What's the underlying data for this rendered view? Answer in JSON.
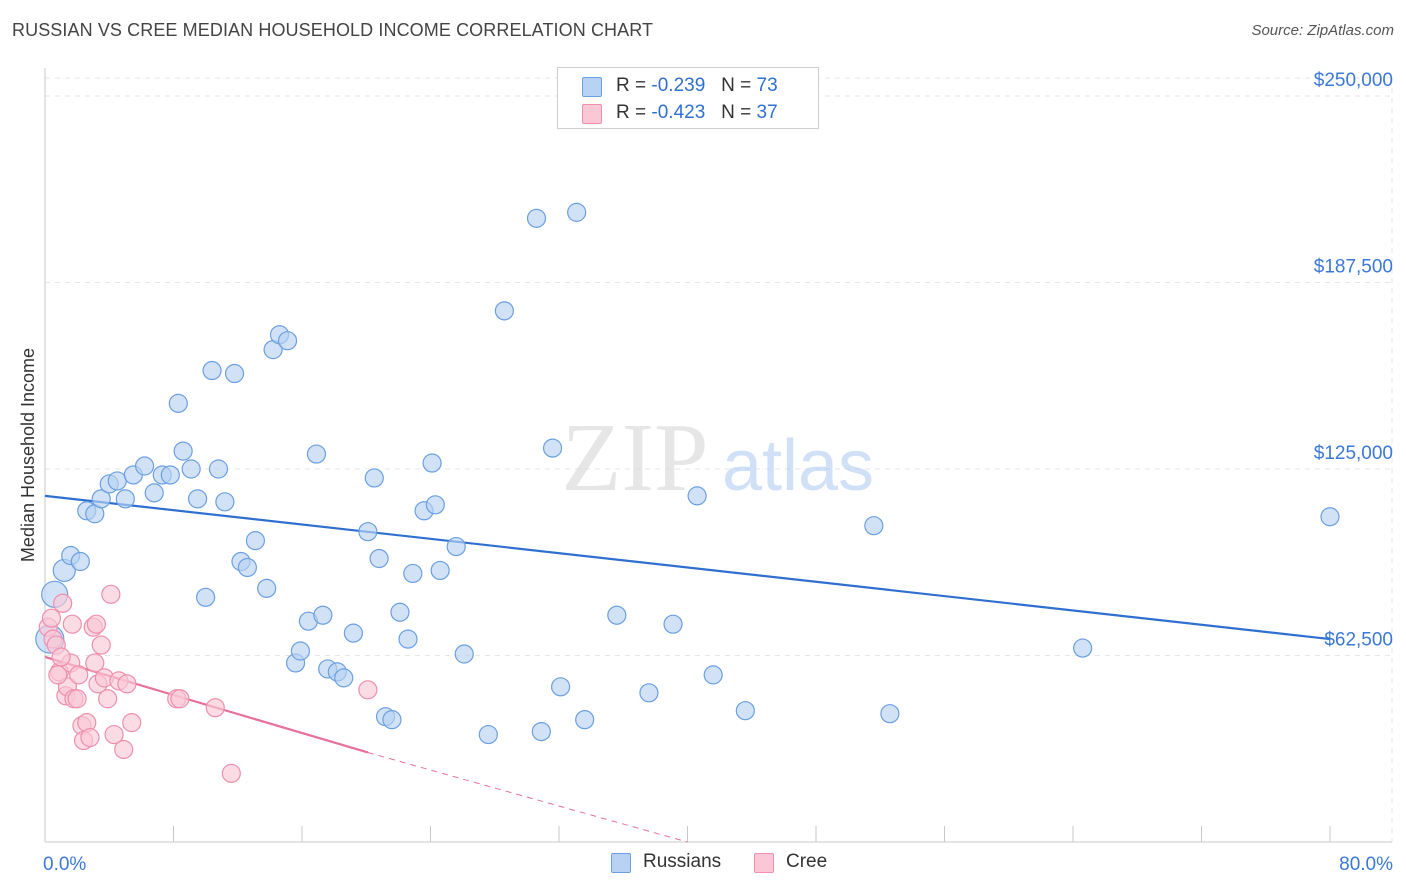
{
  "title": "RUSSIAN VS CREE MEDIAN HOUSEHOLD INCOME CORRELATION CHART",
  "source": "Source: ZipAtlas.com",
  "watermark": {
    "zip": "ZIP",
    "atlas": "atlas"
  },
  "legend": {
    "r_label": "R =",
    "n_label": "N =",
    "entries": [
      {
        "name": "Russians",
        "r": "-0.239",
        "n": "73",
        "fill": "#b8d2f3",
        "stroke": "#6b9fe0"
      },
      {
        "name": "Cree",
        "r": "-0.423",
        "n": "37",
        "fill": "#f9c7d6",
        "stroke": "#ee8fae"
      }
    ]
  },
  "chart_data": {
    "type": "scatter",
    "title": "RUSSIAN VS CREE MEDIAN HOUSEHOLD INCOME CORRELATION CHART",
    "xlabel": "",
    "ylabel": "Median Household Income",
    "xlim": [
      0,
      80
    ],
    "ylim": [
      0,
      250000
    ],
    "x_tick_labels": [
      "0.0%",
      "80.0%"
    ],
    "y_ticks": [
      62500,
      125000,
      187500,
      250000
    ],
    "y_tick_labels": [
      "$62,500",
      "$125,000",
      "$187,500",
      "$250,000"
    ],
    "colors": {
      "russians": "#2f6fcf",
      "cree": "#e8709a",
      "axis_label": "#3b78d8",
      "grid": "#e6e6e6"
    },
    "series": [
      {
        "name": "Russians",
        "points": [
          [
            0.6,
            83000
          ],
          [
            1.2,
            91000
          ],
          [
            1.6,
            96000
          ],
          [
            2.2,
            94000
          ],
          [
            2.6,
            111000
          ],
          [
            3.1,
            110000
          ],
          [
            3.5,
            115000
          ],
          [
            4.0,
            120000
          ],
          [
            4.5,
            121000
          ],
          [
            5.0,
            115000
          ],
          [
            5.5,
            123000
          ],
          [
            6.2,
            126000
          ],
          [
            6.8,
            117000
          ],
          [
            7.3,
            123000
          ],
          [
            7.8,
            123000
          ],
          [
            8.3,
            147000
          ],
          [
            8.6,
            131000
          ],
          [
            9.1,
            125000
          ],
          [
            9.5,
            115000
          ],
          [
            10.0,
            82000
          ],
          [
            10.4,
            158000
          ],
          [
            10.8,
            125000
          ],
          [
            11.2,
            114000
          ],
          [
            11.8,
            157000
          ],
          [
            12.2,
            94000
          ],
          [
            12.6,
            92000
          ],
          [
            13.1,
            101000
          ],
          [
            13.8,
            85000
          ],
          [
            14.2,
            165000
          ],
          [
            14.6,
            170000
          ],
          [
            15.1,
            168000
          ],
          [
            15.6,
            60000
          ],
          [
            15.9,
            64000
          ],
          [
            16.4,
            74000
          ],
          [
            16.9,
            130000
          ],
          [
            17.3,
            76000
          ],
          [
            17.6,
            58000
          ],
          [
            18.2,
            57000
          ],
          [
            18.6,
            55000
          ],
          [
            19.2,
            70000
          ],
          [
            20.1,
            104000
          ],
          [
            20.5,
            122000
          ],
          [
            20.8,
            95000
          ],
          [
            21.2,
            42000
          ],
          [
            21.6,
            41000
          ],
          [
            22.1,
            77000
          ],
          [
            22.6,
            68000
          ],
          [
            22.9,
            90000
          ],
          [
            23.6,
            111000
          ],
          [
            24.1,
            127000
          ],
          [
            24.3,
            113000
          ],
          [
            24.6,
            91000
          ],
          [
            25.6,
            99000
          ],
          [
            26.1,
            63000
          ],
          [
            27.6,
            36000
          ],
          [
            28.6,
            178000
          ],
          [
            30.6,
            209000
          ],
          [
            30.9,
            37000
          ],
          [
            31.6,
            132000
          ],
          [
            32.1,
            52000
          ],
          [
            33.1,
            211000
          ],
          [
            33.6,
            41000
          ],
          [
            35.6,
            76000
          ],
          [
            37.6,
            50000
          ],
          [
            39.1,
            73000
          ],
          [
            40.6,
            116000
          ],
          [
            41.6,
            56000
          ],
          [
            43.6,
            44000
          ],
          [
            51.6,
            106000
          ],
          [
            52.6,
            43000
          ],
          [
            64.6,
            65000
          ],
          [
            80.0,
            109000
          ],
          [
            0.3,
            68000
          ]
        ]
      },
      {
        "name": "Cree",
        "points": [
          [
            0.2,
            72000
          ],
          [
            0.4,
            75000
          ],
          [
            0.5,
            68000
          ],
          [
            0.7,
            66000
          ],
          [
            0.9,
            57000
          ],
          [
            1.1,
            80000
          ],
          [
            1.3,
            49000
          ],
          [
            1.4,
            52000
          ],
          [
            1.6,
            60000
          ],
          [
            1.7,
            73000
          ],
          [
            1.8,
            48000
          ],
          [
            2.0,
            48000
          ],
          [
            2.1,
            56000
          ],
          [
            2.3,
            39000
          ],
          [
            2.4,
            34000
          ],
          [
            2.6,
            40000
          ],
          [
            2.8,
            35000
          ],
          [
            3.0,
            72000
          ],
          [
            3.1,
            60000
          ],
          [
            3.2,
            73000
          ],
          [
            3.3,
            53000
          ],
          [
            3.5,
            66000
          ],
          [
            3.7,
            55000
          ],
          [
            3.9,
            48000
          ],
          [
            4.1,
            83000
          ],
          [
            4.3,
            36000
          ],
          [
            4.6,
            54000
          ],
          [
            4.9,
            31000
          ],
          [
            5.1,
            53000
          ],
          [
            5.4,
            40000
          ],
          [
            8.2,
            48000
          ],
          [
            8.4,
            48000
          ],
          [
            10.6,
            45000
          ],
          [
            11.6,
            23000
          ],
          [
            20.1,
            51000
          ],
          [
            1.0,
            62000
          ],
          [
            0.8,
            56000
          ]
        ]
      }
    ],
    "trendlines": [
      {
        "series": "Russians",
        "x": [
          0,
          80
        ],
        "y": [
          116000,
          68000
        ]
      },
      {
        "series": "Cree",
        "x": [
          0,
          20.1
        ],
        "y": [
          62000,
          30000
        ],
        "dashed_extension_to": [
          40,
          0
        ]
      }
    ]
  }
}
